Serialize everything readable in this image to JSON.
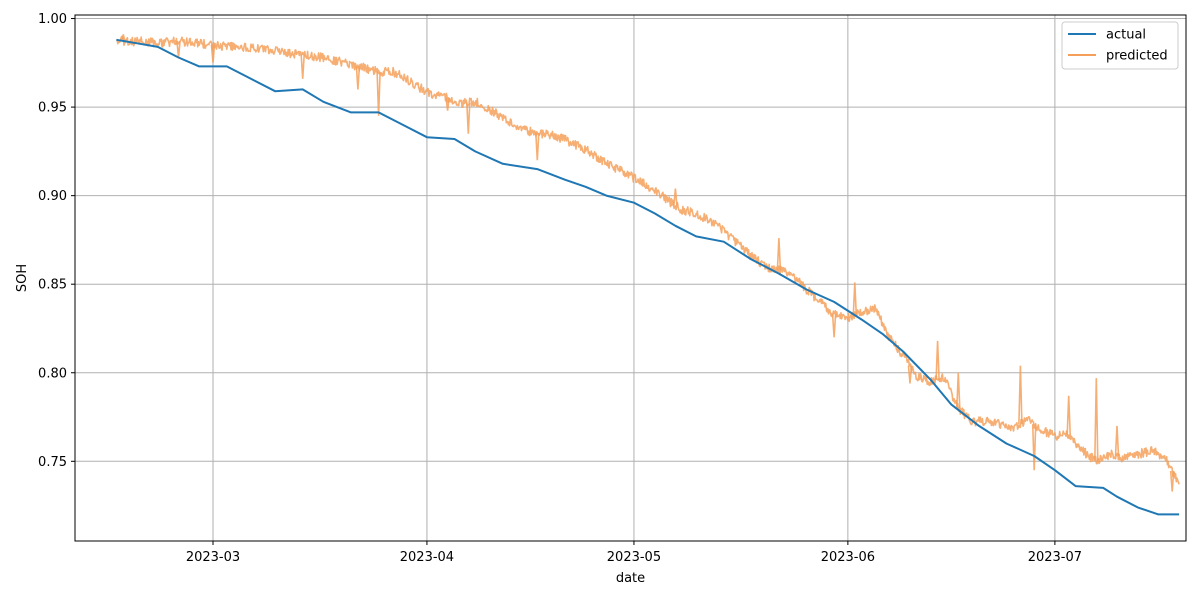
{
  "chart_data": {
    "type": "line",
    "title": "",
    "xlabel": "date",
    "ylabel": "SOH",
    "xlim": [
      "2023-02-09",
      "2023-07-20"
    ],
    "ylim": [
      0.705,
      1.002
    ],
    "x_ticks": [
      "2023-03",
      "2023-04",
      "2023-05",
      "2023-06",
      "2023-07"
    ],
    "x_tick_dates": [
      "2023-03-01",
      "2023-04-01",
      "2023-05-01",
      "2023-06-01",
      "2023-07-01"
    ],
    "y_ticks": [
      0.75,
      0.8,
      0.85,
      0.9,
      0.95,
      1.0
    ],
    "y_tick_labels": [
      "0.75",
      "0.80",
      "0.85",
      "0.90",
      "0.95",
      "1.00"
    ],
    "grid": true,
    "legend_position": "top-right",
    "series": [
      {
        "name": "actual",
        "color": "#1f77b4",
        "points": [
          [
            "2023-02-15",
            0.988
          ],
          [
            "2023-02-18",
            0.986
          ],
          [
            "2023-02-21",
            0.984
          ],
          [
            "2023-02-24",
            0.978
          ],
          [
            "2023-02-27",
            0.973
          ],
          [
            "2023-03-03",
            0.973
          ],
          [
            "2023-03-06",
            0.967
          ],
          [
            "2023-03-10",
            0.959
          ],
          [
            "2023-03-14",
            0.96
          ],
          [
            "2023-03-17",
            0.953
          ],
          [
            "2023-03-21",
            0.947
          ],
          [
            "2023-03-25",
            0.947
          ],
          [
            "2023-03-28",
            0.941
          ],
          [
            "2023-04-01",
            0.933
          ],
          [
            "2023-04-05",
            0.932
          ],
          [
            "2023-04-08",
            0.925
          ],
          [
            "2023-04-12",
            0.918
          ],
          [
            "2023-04-17",
            0.915
          ],
          [
            "2023-04-21",
            0.909
          ],
          [
            "2023-04-24",
            0.905
          ],
          [
            "2023-04-27",
            0.9
          ],
          [
            "2023-05-01",
            0.896
          ],
          [
            "2023-05-04",
            0.89
          ],
          [
            "2023-05-07",
            0.883
          ],
          [
            "2023-05-10",
            0.877
          ],
          [
            "2023-05-14",
            0.874
          ],
          [
            "2023-05-18",
            0.864
          ],
          [
            "2023-05-22",
            0.856
          ],
          [
            "2023-05-26",
            0.847
          ],
          [
            "2023-05-30",
            0.84
          ],
          [
            "2023-06-03",
            0.83
          ],
          [
            "2023-06-06",
            0.822
          ],
          [
            "2023-06-09",
            0.812
          ],
          [
            "2023-06-13",
            0.796
          ],
          [
            "2023-06-16",
            0.782
          ],
          [
            "2023-06-20",
            0.77
          ],
          [
            "2023-06-24",
            0.76
          ],
          [
            "2023-06-28",
            0.753
          ],
          [
            "2023-07-01",
            0.745
          ],
          [
            "2023-07-04",
            0.736
          ],
          [
            "2023-07-08",
            0.735
          ],
          [
            "2023-07-10",
            0.73
          ],
          [
            "2023-07-13",
            0.724
          ],
          [
            "2023-07-16",
            0.72
          ],
          [
            "2023-07-19",
            0.72
          ]
        ]
      },
      {
        "name": "predicted",
        "color": "#f5a05a",
        "points": [
          [
            "2023-02-15",
            0.988
          ],
          [
            "2023-02-17",
            0.987
          ],
          [
            "2023-02-19",
            0.987
          ],
          [
            "2023-02-21",
            0.986
          ],
          [
            "2023-02-23",
            0.987
          ],
          [
            "2023-02-25",
            0.987
          ],
          [
            "2023-02-27",
            0.986
          ],
          [
            "2023-03-01",
            0.985
          ],
          [
            "2023-03-03",
            0.984
          ],
          [
            "2023-03-05",
            0.984
          ],
          [
            "2023-03-07",
            0.983
          ],
          [
            "2023-03-09",
            0.982
          ],
          [
            "2023-03-11",
            0.981
          ],
          [
            "2023-03-13",
            0.98
          ],
          [
            "2023-03-15",
            0.979
          ],
          [
            "2023-03-17",
            0.978
          ],
          [
            "2023-03-19",
            0.976
          ],
          [
            "2023-03-21",
            0.974
          ],
          [
            "2023-03-23",
            0.972
          ],
          [
            "2023-03-25",
            0.97
          ],
          [
            "2023-03-27",
            0.97
          ],
          [
            "2023-03-29",
            0.966
          ],
          [
            "2023-03-31",
            0.961
          ],
          [
            "2023-04-02",
            0.957
          ],
          [
            "2023-04-04",
            0.955
          ],
          [
            "2023-04-06",
            0.952
          ],
          [
            "2023-04-08",
            0.953
          ],
          [
            "2023-04-10",
            0.949
          ],
          [
            "2023-04-12",
            0.944
          ],
          [
            "2023-04-14",
            0.939
          ],
          [
            "2023-04-16",
            0.936
          ],
          [
            "2023-04-18",
            0.935
          ],
          [
            "2023-04-20",
            0.933
          ],
          [
            "2023-04-22",
            0.93
          ],
          [
            "2023-04-24",
            0.926
          ],
          [
            "2023-04-26",
            0.921
          ],
          [
            "2023-04-28",
            0.916
          ],
          [
            "2023-04-30",
            0.912
          ],
          [
            "2023-05-02",
            0.908
          ],
          [
            "2023-05-04",
            0.903
          ],
          [
            "2023-05-06",
            0.897
          ],
          [
            "2023-05-08",
            0.892
          ],
          [
            "2023-05-10",
            0.89
          ],
          [
            "2023-05-12",
            0.886
          ],
          [
            "2023-05-14",
            0.88
          ],
          [
            "2023-05-16",
            0.873
          ],
          [
            "2023-05-18",
            0.866
          ],
          [
            "2023-05-20",
            0.86
          ],
          [
            "2023-05-22",
            0.858
          ],
          [
            "2023-05-24",
            0.855
          ],
          [
            "2023-05-26",
            0.847
          ],
          [
            "2023-05-28",
            0.84
          ],
          [
            "2023-05-30",
            0.833
          ],
          [
            "2023-06-01",
            0.831
          ],
          [
            "2023-06-03",
            0.834
          ],
          [
            "2023-06-05",
            0.836
          ],
          [
            "2023-06-07",
            0.82
          ],
          [
            "2023-06-09",
            0.81
          ],
          [
            "2023-06-11",
            0.798
          ],
          [
            "2023-06-13",
            0.795
          ],
          [
            "2023-06-15",
            0.797
          ],
          [
            "2023-06-17",
            0.78
          ],
          [
            "2023-06-19",
            0.772
          ],
          [
            "2023-06-21",
            0.773
          ],
          [
            "2023-06-23",
            0.771
          ],
          [
            "2023-06-25",
            0.768
          ],
          [
            "2023-06-27",
            0.774
          ],
          [
            "2023-06-29",
            0.768
          ],
          [
            "2023-07-01",
            0.764
          ],
          [
            "2023-07-03",
            0.765
          ],
          [
            "2023-07-05",
            0.756
          ],
          [
            "2023-07-07",
            0.75
          ],
          [
            "2023-07-09",
            0.754
          ],
          [
            "2023-07-11",
            0.752
          ],
          [
            "2023-07-13",
            0.754
          ],
          [
            "2023-07-15",
            0.756
          ],
          [
            "2023-07-17",
            0.752
          ],
          [
            "2023-07-19",
            0.737
          ]
        ],
        "spikes": [
          [
            "2023-02-16",
            0.991
          ],
          [
            "2023-02-24",
            0.978
          ],
          [
            "2023-03-01",
            0.975
          ],
          [
            "2023-03-14",
            0.966
          ],
          [
            "2023-03-22",
            0.96
          ],
          [
            "2023-03-25",
            0.945
          ],
          [
            "2023-04-04",
            0.948
          ],
          [
            "2023-04-07",
            0.935
          ],
          [
            "2023-04-17",
            0.92
          ],
          [
            "2023-05-07",
            0.904
          ],
          [
            "2023-05-22",
            0.876
          ],
          [
            "2023-05-30",
            0.82
          ],
          [
            "2023-06-02",
            0.851
          ],
          [
            "2023-06-10",
            0.794
          ],
          [
            "2023-06-14",
            0.818
          ],
          [
            "2023-06-17",
            0.8
          ],
          [
            "2023-06-26",
            0.804
          ],
          [
            "2023-06-28",
            0.745
          ],
          [
            "2023-07-03",
            0.787
          ],
          [
            "2023-07-07",
            0.797
          ],
          [
            "2023-07-10",
            0.77
          ],
          [
            "2023-07-18",
            0.733
          ]
        ]
      }
    ]
  }
}
